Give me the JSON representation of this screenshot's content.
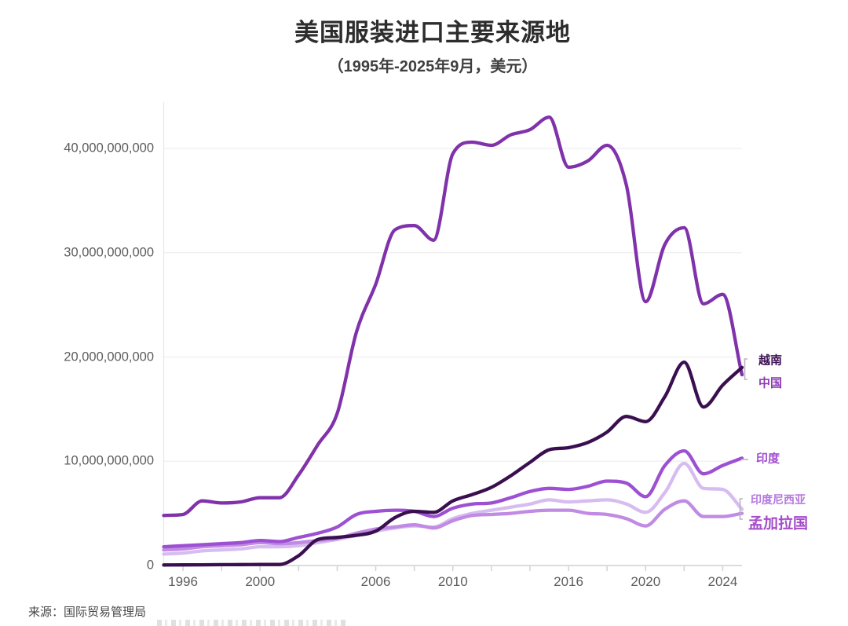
{
  "header": {
    "title": "美国服装进口主要来源地",
    "subtitle": "（1995年-2025年9月，美元）"
  },
  "footer": {
    "source": "来源：国际贸易管理局"
  },
  "chart_data": {
    "type": "line",
    "title": "美国服装进口主要来源地",
    "subtitle": "（1995年-2025年9月，美元）",
    "unit": "美元",
    "x": [
      1995,
      1996,
      1997,
      1998,
      1999,
      2000,
      2001,
      2002,
      2003,
      2004,
      2005,
      2006,
      2007,
      2008,
      2009,
      2010,
      2011,
      2012,
      2013,
      2014,
      2015,
      2016,
      2017,
      2018,
      2019,
      2020,
      2021,
      2022,
      2023,
      2024,
      2025
    ],
    "series": [
      {
        "key": "indonesia",
        "name": "印度尼西亚",
        "color": "#d6bcf0",
        "label_color": "#b478de",
        "label_size": 14,
        "values_billions": [
          1.1,
          1.2,
          1.4,
          1.5,
          1.6,
          1.8,
          1.8,
          1.9,
          2.2,
          2.5,
          2.9,
          3.3,
          3.6,
          3.8,
          3.7,
          4.5,
          5.0,
          5.3,
          5.6,
          5.9,
          6.3,
          6.1,
          6.2,
          6.3,
          5.9,
          5.1,
          7.0,
          9.8,
          7.4,
          7.3,
          5.4
        ]
      },
      {
        "key": "bangladesh",
        "name": "孟加拉国",
        "color": "#c18ae3",
        "label_color": "#a54ccb",
        "label_size": 19,
        "values_billions": [
          1.5,
          1.6,
          1.8,
          1.9,
          2.0,
          2.2,
          2.1,
          2.2,
          2.4,
          2.6,
          3.1,
          3.5,
          3.7,
          3.9,
          3.6,
          4.3,
          4.8,
          4.9,
          5.0,
          5.2,
          5.3,
          5.3,
          5.0,
          4.9,
          4.5,
          3.8,
          5.4,
          6.2,
          4.7,
          4.7,
          5.0
        ]
      },
      {
        "key": "india",
        "name": "印度",
        "color": "#9d50d2",
        "label_color": "#a04fd0",
        "label_size": 15,
        "values_billions": [
          1.8,
          1.9,
          2.0,
          2.1,
          2.2,
          2.4,
          2.3,
          2.7,
          3.1,
          3.7,
          4.9,
          5.2,
          5.3,
          5.2,
          4.7,
          5.5,
          5.9,
          6.0,
          6.5,
          7.1,
          7.4,
          7.3,
          7.6,
          8.1,
          7.9,
          6.6,
          9.6,
          11.0,
          8.8,
          9.6,
          10.3
        ]
      },
      {
        "key": "china",
        "name": "中国",
        "color": "#8032ab",
        "label_color": "#8d3ab4",
        "label_size": 15,
        "values_billions": [
          4.8,
          4.9,
          6.2,
          6.0,
          6.1,
          6.5,
          6.5,
          8.7,
          11.6,
          14.6,
          22.4,
          27.0,
          32.2,
          32.6,
          31.2,
          39.5,
          40.6,
          40.3,
          41.3,
          41.8,
          43.0,
          38.2,
          38.8,
          40.3,
          36.5,
          25.3,
          30.8,
          32.4,
          25.1,
          26.0,
          18.3
        ]
      },
      {
        "key": "vietnam",
        "name": "越南",
        "color": "#3a0f4f",
        "label_color": "#3d1253",
        "label_size": 15,
        "values_billions": [
          0.05,
          0.06,
          0.07,
          0.08,
          0.09,
          0.1,
          0.1,
          0.95,
          2.5,
          2.7,
          2.9,
          3.3,
          4.6,
          5.2,
          5.1,
          6.2,
          6.8,
          7.5,
          8.6,
          9.9,
          11.1,
          11.3,
          11.8,
          12.8,
          14.3,
          13.8,
          16.2,
          19.5,
          15.2,
          17.3,
          19.0
        ]
      }
    ],
    "ylim_billions": [
      0,
      44
    ],
    "yticks_billions": [
      0,
      10,
      20,
      30,
      40
    ],
    "ytick_labels": [
      "0",
      "10,000,000,000",
      "20,000,000,000",
      "30,000,000,000",
      "40,000,000,000"
    ],
    "xtick_labeled_years": [
      "1996",
      "2000",
      "2006",
      "2010",
      "2016",
      "2020",
      "2024"
    ],
    "xtick_minor_step_years": 2,
    "grid": "horizontal",
    "legend_position": "right-end-labels",
    "end_bracket_color": "#b9b3bf"
  }
}
